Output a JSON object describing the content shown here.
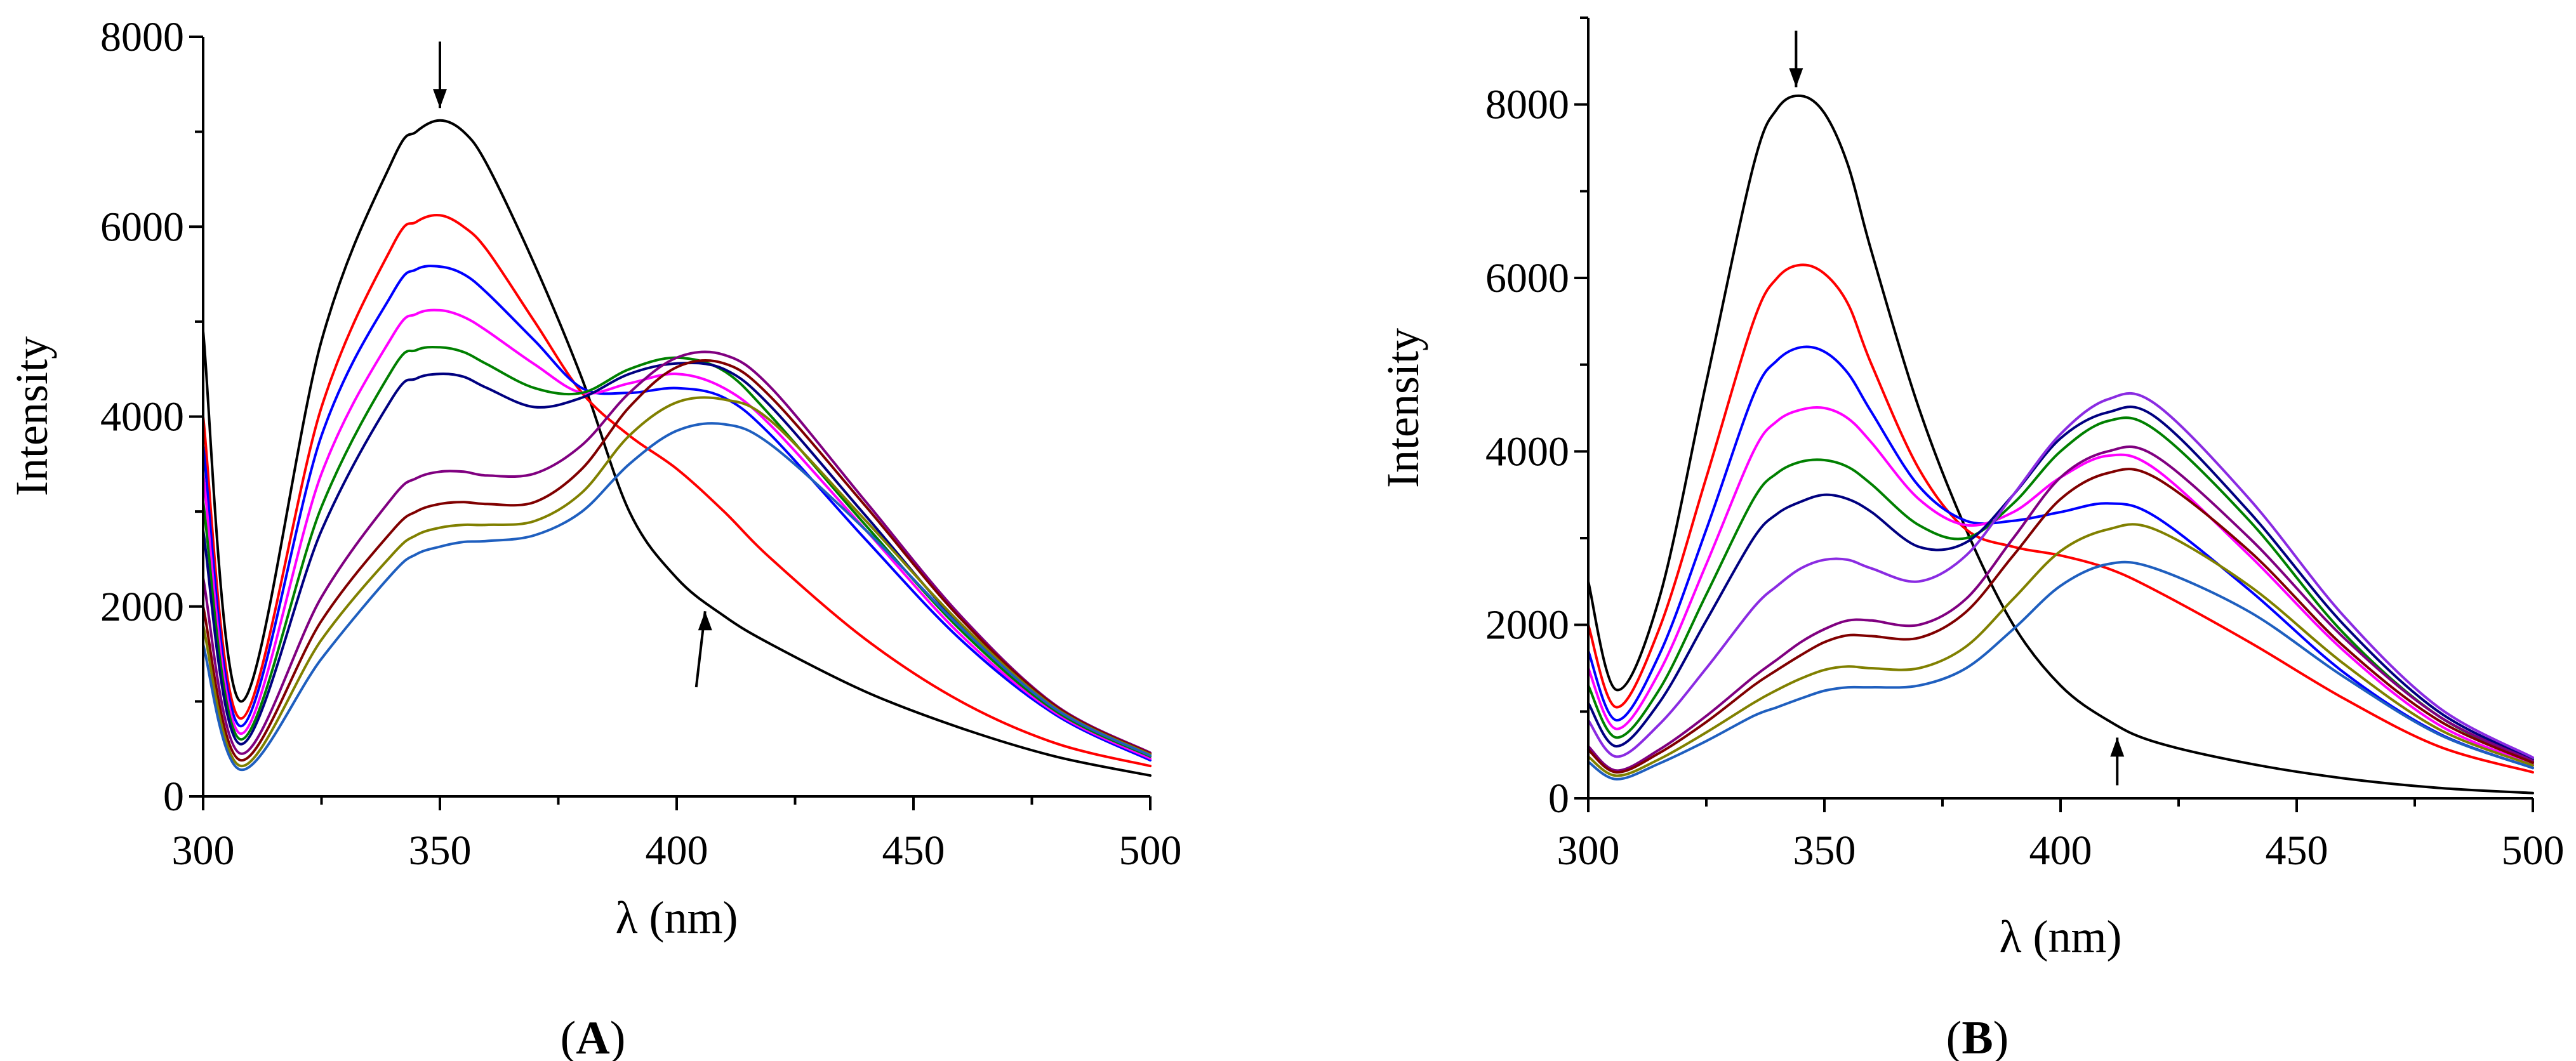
{
  "figure": {
    "panels": [
      {
        "id": "A",
        "label_open": "(",
        "label_letter": "A",
        "label_close": ")"
      },
      {
        "id": "B",
        "label_open": "(",
        "label_letter": "B",
        "label_close": ")"
      }
    ]
  },
  "chart_data": [
    {
      "panel": "A",
      "type": "line",
      "title": "",
      "xlabel": "λ (nm)",
      "ylabel": "Intensity",
      "xlim": [
        300,
        500
      ],
      "ylim": [
        0,
        8000
      ],
      "xticks": [
        300,
        350,
        400,
        450,
        500
      ],
      "yticks": [
        0,
        2000,
        4000,
        6000,
        8000
      ],
      "grid": false,
      "annotations": [
        {
          "kind": "arrow-down",
          "x": 350,
          "y_from": 7950,
          "y_to": 7250
        },
        {
          "kind": "arrow-up",
          "x": 406,
          "y_from": 1150,
          "y_to": 1950
        }
      ],
      "x": [
        300,
        308,
        325,
        340,
        345,
        350,
        355,
        360,
        370,
        380,
        390,
        400,
        410,
        420,
        440,
        460,
        480,
        500
      ],
      "series": [
        {
          "name": "s1",
          "color": "#000000",
          "values": [
            4900,
            1000,
            4800,
            6700,
            7000,
            7120,
            7000,
            6650,
            5600,
            4400,
            3000,
            2300,
            1900,
            1600,
            1100,
            720,
            420,
            220
          ]
        },
        {
          "name": "s2",
          "color": "#ff0000",
          "values": [
            4000,
            820,
            4100,
            5800,
            6050,
            6120,
            6000,
            5750,
            5000,
            4250,
            3800,
            3450,
            3000,
            2500,
            1650,
            1000,
            560,
            320
          ]
        },
        {
          "name": "s3",
          "color": "#0000ff",
          "values": [
            3700,
            740,
            3800,
            5300,
            5550,
            5580,
            5500,
            5300,
            4800,
            4300,
            4250,
            4300,
            4200,
            3800,
            2700,
            1650,
            860,
            380
          ]
        },
        {
          "name": "s4",
          "color": "#ff00ff",
          "values": [
            3400,
            660,
            3400,
            4850,
            5080,
            5120,
            5050,
            4900,
            4550,
            4250,
            4350,
            4450,
            4300,
            3900,
            2800,
            1700,
            880,
            400
          ]
        },
        {
          "name": "s5",
          "color": "#008000",
          "values": [
            3100,
            600,
            3050,
            4500,
            4700,
            4730,
            4680,
            4550,
            4300,
            4250,
            4500,
            4620,
            4480,
            4000,
            2850,
            1750,
            900,
            420
          ]
        },
        {
          "name": "s6",
          "color": "#000080",
          "values": [
            2800,
            550,
            2800,
            4200,
            4400,
            4450,
            4420,
            4300,
            4100,
            4200,
            4450,
            4560,
            4500,
            4100,
            2950,
            1800,
            920,
            440
          ]
        },
        {
          "name": "s7",
          "color": "#800080",
          "values": [
            2300,
            450,
            2100,
            3150,
            3350,
            3420,
            3420,
            3380,
            3400,
            3700,
            4250,
            4620,
            4650,
            4300,
            3100,
            1900,
            960,
            460
          ]
        },
        {
          "name": "s8",
          "color": "#800000",
          "values": [
            2000,
            380,
            1850,
            2800,
            3000,
            3080,
            3100,
            3080,
            3100,
            3450,
            4100,
            4520,
            4560,
            4200,
            3050,
            1870,
            950,
            450
          ]
        },
        {
          "name": "s9",
          "color": "#808000",
          "values": [
            1800,
            320,
            1650,
            2550,
            2750,
            2830,
            2860,
            2860,
            2900,
            3200,
            3800,
            4150,
            4180,
            3950,
            2900,
            1820,
            930,
            440
          ]
        },
        {
          "name": "s10",
          "color": "#1f5fbf",
          "values": [
            1600,
            280,
            1450,
            2350,
            2550,
            2630,
            2680,
            2690,
            2750,
            3000,
            3500,
            3850,
            3920,
            3700,
            2800,
            1780,
            920,
            430
          ]
        }
      ]
    },
    {
      "panel": "B",
      "type": "line",
      "title": "",
      "xlabel": "λ (nm)",
      "ylabel": "Intensity",
      "xlim": [
        300,
        500
      ],
      "ylim": [
        0,
        9000
      ],
      "xticks": [
        300,
        350,
        400,
        450,
        500
      ],
      "yticks": [
        0,
        2000,
        4000,
        6000,
        8000
      ],
      "grid": false,
      "annotations": [
        {
          "kind": "arrow-down",
          "x": 344,
          "y_from": 8850,
          "y_to": 8200
        },
        {
          "kind": "arrow-up",
          "x": 412,
          "y_from": 150,
          "y_to": 700
        }
      ],
      "x": [
        300,
        306,
        315,
        325,
        335,
        340,
        345,
        350,
        355,
        360,
        370,
        380,
        390,
        400,
        410,
        420,
        440,
        460,
        480,
        500
      ],
      "series": [
        {
          "name": "s1",
          "color": "#000000",
          "values": [
            2500,
            1250,
            2300,
            4800,
            7300,
            7950,
            8100,
            7900,
            7300,
            6300,
            4500,
            3100,
            2000,
            1300,
            900,
            650,
            400,
            230,
            120,
            60
          ]
        },
        {
          "name": "s2",
          "color": "#ff0000",
          "values": [
            2000,
            1050,
            1950,
            3700,
            5500,
            6000,
            6150,
            6050,
            5700,
            5000,
            3800,
            3100,
            2900,
            2800,
            2650,
            2400,
            1800,
            1150,
            600,
            300
          ]
        },
        {
          "name": "s3",
          "color": "#0000ff",
          "values": [
            1700,
            900,
            1650,
            3100,
            4650,
            5050,
            5200,
            5150,
            4900,
            4450,
            3600,
            3200,
            3200,
            3300,
            3400,
            3250,
            2400,
            1450,
            750,
            350
          ]
        },
        {
          "name": "s4",
          "color": "#ff00ff",
          "values": [
            1500,
            800,
            1450,
            2700,
            4000,
            4350,
            4480,
            4500,
            4380,
            4100,
            3450,
            3150,
            3300,
            3700,
            3950,
            3800,
            2800,
            1700,
            850,
            390
          ]
        },
        {
          "name": "s5",
          "color": "#008000",
          "values": [
            1300,
            700,
            1250,
            2350,
            3450,
            3750,
            3880,
            3900,
            3820,
            3620,
            3150,
            3000,
            3400,
            4000,
            4350,
            4250,
            3200,
            1900,
            950,
            420
          ]
        },
        {
          "name": "s6",
          "color": "#000080",
          "values": [
            1100,
            600,
            1100,
            2050,
            3000,
            3280,
            3420,
            3500,
            3450,
            3300,
            2900,
            2950,
            3500,
            4150,
            4450,
            4400,
            3300,
            2000,
            1000,
            450
          ]
        },
        {
          "name": "s7",
          "color": "#8a2be2",
          "values": [
            900,
            480,
            850,
            1500,
            2200,
            2450,
            2650,
            2750,
            2750,
            2650,
            2500,
            2800,
            3500,
            4200,
            4600,
            4550,
            3450,
            2100,
            1050,
            470
          ]
        },
        {
          "name": "s8",
          "color": "#800080",
          "values": [
            600,
            320,
            560,
            950,
            1400,
            1600,
            1800,
            1950,
            2050,
            2050,
            2000,
            2300,
            3000,
            3700,
            4000,
            3950,
            3000,
            1850,
            950,
            430
          ]
        },
        {
          "name": "s9",
          "color": "#800000",
          "values": [
            560,
            300,
            520,
            880,
            1300,
            1480,
            1650,
            1800,
            1880,
            1870,
            1850,
            2150,
            2800,
            3450,
            3750,
            3700,
            2850,
            1750,
            900,
            410
          ]
        },
        {
          "name": "s10",
          "color": "#808000",
          "values": [
            480,
            260,
            450,
            760,
            1100,
            1250,
            1380,
            1480,
            1520,
            1500,
            1500,
            1750,
            2300,
            2850,
            3100,
            3100,
            2450,
            1550,
            800,
            380
          ]
        },
        {
          "name": "s11",
          "color": "#1f5fbf",
          "values": [
            420,
            220,
            400,
            660,
            950,
            1050,
            1150,
            1240,
            1280,
            1280,
            1300,
            1500,
            1950,
            2450,
            2700,
            2650,
            2150,
            1400,
            740,
            350
          ]
        }
      ]
    }
  ]
}
